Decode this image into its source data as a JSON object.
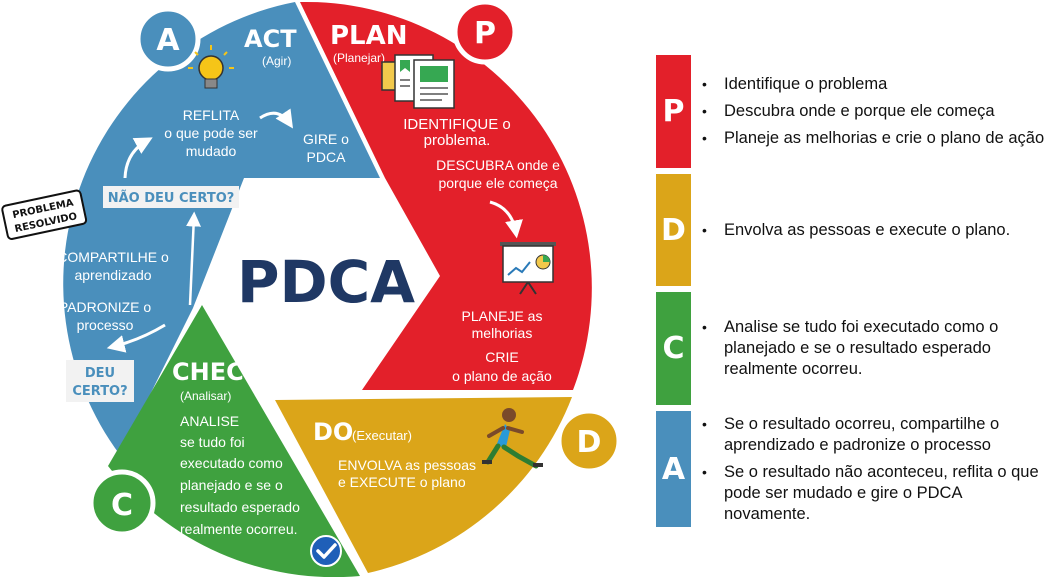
{
  "center_title": "PDCA",
  "plan": {
    "badge": "P",
    "title": "PLAN",
    "subtitle": "(Planejar)",
    "step1a": "IDENTIFIQUE o",
    "step1b": "problema.",
    "step2a": "DESCUBRA onde e",
    "step2b": "porque ele começa",
    "step3a": "PLANEJE as",
    "step3b": "melhorias",
    "step4a": "CRIE",
    "step4b": "o plano de ação"
  },
  "do": {
    "badge": "D",
    "title": "DO",
    "subtitle": "(Executar)",
    "step1a": "ENVOLVA as pessoas",
    "step1b": "e EXECUTE o plano"
  },
  "check": {
    "badge": "C",
    "title": "CHECK",
    "subtitle": "(Analisar)",
    "lines": [
      "ANALISE",
      "se tudo foi",
      "executado como",
      "planejado e se o",
      "resultado esperado",
      "realmente ocorreu."
    ]
  },
  "act": {
    "badge": "A",
    "title": "ACT",
    "subtitle": "(Agir)",
    "reflita_a": "REFLITA",
    "reflita_b": "o que pode ser",
    "reflita_c": "mudado",
    "gire_a": "GIRE o",
    "gire_b": "PDCA",
    "nao_deu_certo": "NÃO DEU CERTO?",
    "compartilhe_a": "COMPARTILHE o",
    "compartilhe_b": "aprendizado",
    "padronize_a": "PADRONIZE o",
    "padronize_b": "processo",
    "deu_certo_a": "DEU",
    "deu_certo_b": "CERTO?"
  },
  "problema_resolvido": {
    "line1": "PROBLEMA",
    "line2": "RESOLVIDO"
  },
  "colors": {
    "plan": "#e3202a",
    "do": "#dba519",
    "check": "#3fa13f",
    "act": "#4a8fbc",
    "navy": "#1f3864"
  },
  "icons": [
    "lightbulb-icon",
    "documents-icon",
    "presentation-chart-icon",
    "runner-icon",
    "check-badge-icon",
    "arrow-icon"
  ],
  "legend": [
    {
      "letter": "P",
      "items": [
        "Identifique o problema",
        "Descubra onde e porque ele começa",
        "Planeje as melhorias e crie o plano de ação"
      ]
    },
    {
      "letter": "D",
      "items": [
        "Envolva as pessoas e execute o plano."
      ]
    },
    {
      "letter": "C",
      "items": [
        "Analise se tudo foi executado como o planejado e se o resultado esperado realmente ocorreu."
      ]
    },
    {
      "letter": "A",
      "items": [
        "Se o resultado ocorreu, compartilhe o aprendizado e padronize o processo",
        "Se o resultado não aconteceu, reflita o que pode ser mudado e gire o PDCA novamente."
      ]
    }
  ]
}
